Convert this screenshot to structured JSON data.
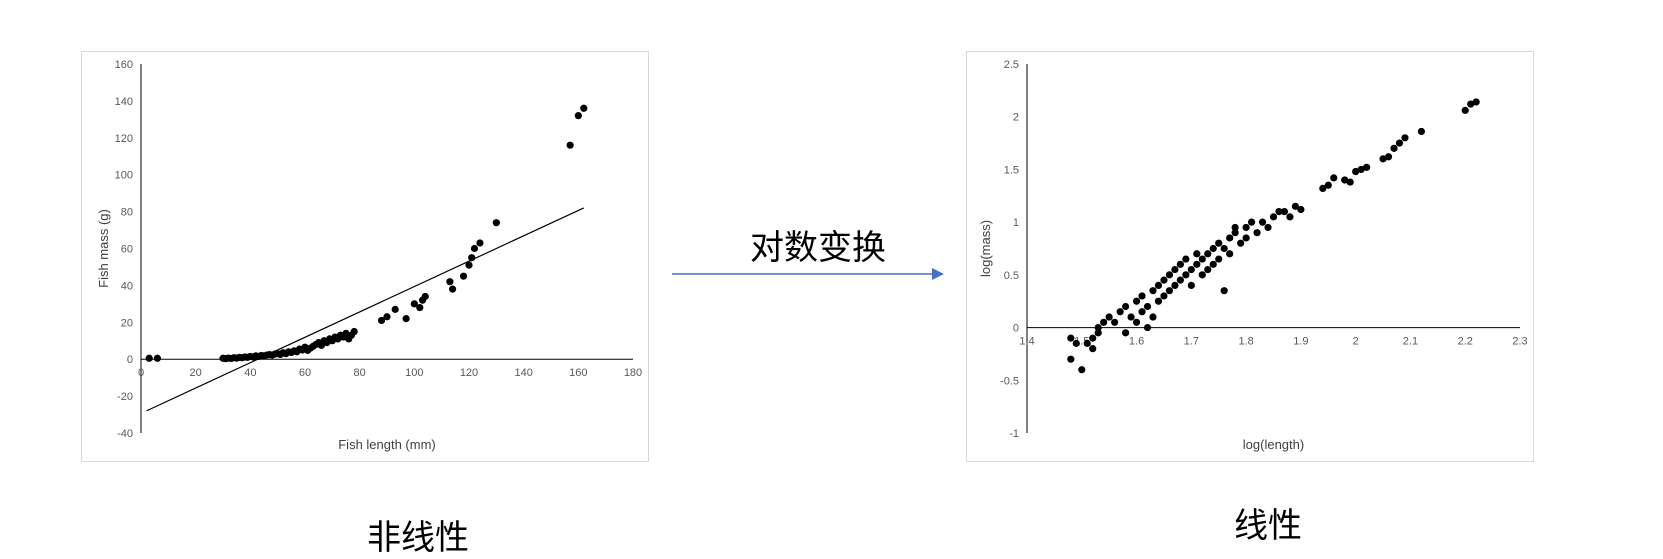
{
  "arrow_label": "对数变换",
  "captions": {
    "left": "非线性",
    "right": "线性"
  },
  "colors": {
    "arrow": "#4472C4",
    "points": "#000000",
    "axis": "#000000"
  },
  "chart_data": [
    {
      "type": "scatter",
      "title": "",
      "xlabel": "Fish length (mm)",
      "ylabel": "Fish mass (g)",
      "xlim": [
        0,
        180
      ],
      "ylim": [
        -40,
        160
      ],
      "xticks": [
        0,
        20,
        40,
        60,
        80,
        100,
        120,
        140,
        160,
        180
      ],
      "yticks": [
        -40,
        -20,
        0,
        20,
        40,
        60,
        80,
        100,
        120,
        140,
        160
      ],
      "grid": false,
      "trendline": {
        "type": "linear",
        "from": [
          2,
          -28
        ],
        "to": [
          162,
          82
        ]
      },
      "points": [
        [
          3,
          0.5
        ],
        [
          6,
          0.5
        ],
        [
          30,
          0.5
        ],
        [
          31,
          0.3
        ],
        [
          32,
          0.6
        ],
        [
          33,
          0.4
        ],
        [
          34,
          0.8
        ],
        [
          35,
          0.6
        ],
        [
          36,
          1.0
        ],
        [
          37,
          0.8
        ],
        [
          38,
          1.2
        ],
        [
          39,
          1.0
        ],
        [
          40,
          1.5
        ],
        [
          41,
          1.2
        ],
        [
          42,
          1.8
        ],
        [
          43,
          1.5
        ],
        [
          44,
          2.0
        ],
        [
          45,
          1.8
        ],
        [
          46,
          2.2
        ],
        [
          47,
          2.5
        ],
        [
          48,
          2.2
        ],
        [
          49,
          2.8
        ],
        [
          50,
          3.0
        ],
        [
          51,
          2.6
        ],
        [
          52,
          3.5
        ],
        [
          53,
          3.0
        ],
        [
          54,
          4.0
        ],
        [
          55,
          3.6
        ],
        [
          56,
          4.5
        ],
        [
          57,
          4.0
        ],
        [
          58,
          5.5
        ],
        [
          59,
          5.0
        ],
        [
          60,
          6.5
        ],
        [
          61,
          4.8
        ],
        [
          62,
          6.0
        ],
        [
          63,
          7.0
        ],
        [
          64,
          8.0
        ],
        [
          65,
          9.0
        ],
        [
          66,
          7.5
        ],
        [
          67,
          10.0
        ],
        [
          68,
          9.0
        ],
        [
          69,
          11.0
        ],
        [
          70,
          10.0
        ],
        [
          71,
          12.0
        ],
        [
          72,
          11.0
        ],
        [
          73,
          13.0
        ],
        [
          74,
          12.0
        ],
        [
          75,
          14.0
        ],
        [
          76,
          11.0
        ],
        [
          77,
          13.0
        ],
        [
          78,
          15.0
        ],
        [
          88,
          21
        ],
        [
          90,
          23
        ],
        [
          93,
          27
        ],
        [
          97,
          22
        ],
        [
          100,
          30
        ],
        [
          102,
          28
        ],
        [
          103,
          32
        ],
        [
          104,
          34
        ],
        [
          113,
          42
        ],
        [
          114,
          38
        ],
        [
          118,
          45
        ],
        [
          120,
          51
        ],
        [
          121,
          55
        ],
        [
          122,
          60
        ],
        [
          124,
          63
        ],
        [
          130,
          74
        ],
        [
          157,
          116
        ],
        [
          160,
          132
        ],
        [
          162,
          136
        ]
      ]
    },
    {
      "type": "scatter",
      "title": "",
      "xlabel": "log(length)",
      "ylabel": "log(mass)",
      "xlim": [
        1.4,
        2.3
      ],
      "ylim": [
        -1,
        2.5
      ],
      "xticks": [
        1.4,
        1.5,
        1.6,
        1.7,
        1.8,
        1.9,
        2,
        2.1,
        2.2,
        2.3
      ],
      "yticks": [
        -1,
        -0.5,
        0,
        0.5,
        1,
        1.5,
        2,
        2.5
      ],
      "grid": false,
      "points": [
        [
          1.48,
          -0.1
        ],
        [
          1.48,
          -0.3
        ],
        [
          1.49,
          -0.15
        ],
        [
          1.5,
          -0.4
        ],
        [
          1.51,
          -0.15
        ],
        [
          1.52,
          -0.2
        ],
        [
          1.52,
          -0.1
        ],
        [
          1.53,
          0.0
        ],
        [
          1.53,
          -0.05
        ],
        [
          1.54,
          0.05
        ],
        [
          1.55,
          0.1
        ],
        [
          1.56,
          0.05
        ],
        [
          1.57,
          0.15
        ],
        [
          1.58,
          -0.05
        ],
        [
          1.58,
          0.2
        ],
        [
          1.59,
          0.1
        ],
        [
          1.6,
          0.05
        ],
        [
          1.6,
          0.25
        ],
        [
          1.61,
          0.15
        ],
        [
          1.61,
          0.3
        ],
        [
          1.62,
          0.2
        ],
        [
          1.62,
          0.0
        ],
        [
          1.63,
          0.1
        ],
        [
          1.63,
          0.35
        ],
        [
          1.64,
          0.25
        ],
        [
          1.64,
          0.4
        ],
        [
          1.65,
          0.3
        ],
        [
          1.65,
          0.45
        ],
        [
          1.66,
          0.35
        ],
        [
          1.66,
          0.5
        ],
        [
          1.67,
          0.4
        ],
        [
          1.67,
          0.55
        ],
        [
          1.68,
          0.45
        ],
        [
          1.68,
          0.6
        ],
        [
          1.69,
          0.5
        ],
        [
          1.69,
          0.65
        ],
        [
          1.7,
          0.55
        ],
        [
          1.7,
          0.4
        ],
        [
          1.71,
          0.6
        ],
        [
          1.71,
          0.7
        ],
        [
          1.72,
          0.5
        ],
        [
          1.72,
          0.65
        ],
        [
          1.73,
          0.7
        ],
        [
          1.73,
          0.55
        ],
        [
          1.74,
          0.75
        ],
        [
          1.74,
          0.6
        ],
        [
          1.75,
          0.8
        ],
        [
          1.75,
          0.65
        ],
        [
          1.76,
          0.35
        ],
        [
          1.76,
          0.75
        ],
        [
          1.77,
          0.85
        ],
        [
          1.77,
          0.7
        ],
        [
          1.78,
          0.9
        ],
        [
          1.78,
          0.95
        ],
        [
          1.79,
          0.8
        ],
        [
          1.8,
          0.85
        ],
        [
          1.8,
          0.95
        ],
        [
          1.81,
          1.0
        ],
        [
          1.82,
          0.9
        ],
        [
          1.83,
          1.0
        ],
        [
          1.84,
          0.95
        ],
        [
          1.85,
          1.05
        ],
        [
          1.86,
          1.1
        ],
        [
          1.87,
          1.1
        ],
        [
          1.88,
          1.05
        ],
        [
          1.89,
          1.15
        ],
        [
          1.9,
          1.12
        ],
        [
          1.94,
          1.32
        ],
        [
          1.95,
          1.35
        ],
        [
          1.96,
          1.42
        ],
        [
          1.98,
          1.4
        ],
        [
          1.99,
          1.38
        ],
        [
          2.0,
          1.48
        ],
        [
          2.01,
          1.5
        ],
        [
          2.02,
          1.52
        ],
        [
          2.05,
          1.6
        ],
        [
          2.06,
          1.62
        ],
        [
          2.07,
          1.7
        ],
        [
          2.08,
          1.75
        ],
        [
          2.09,
          1.8
        ],
        [
          2.12,
          1.86
        ],
        [
          2.2,
          2.06
        ],
        [
          2.21,
          2.12
        ],
        [
          2.22,
          2.14
        ]
      ]
    }
  ]
}
